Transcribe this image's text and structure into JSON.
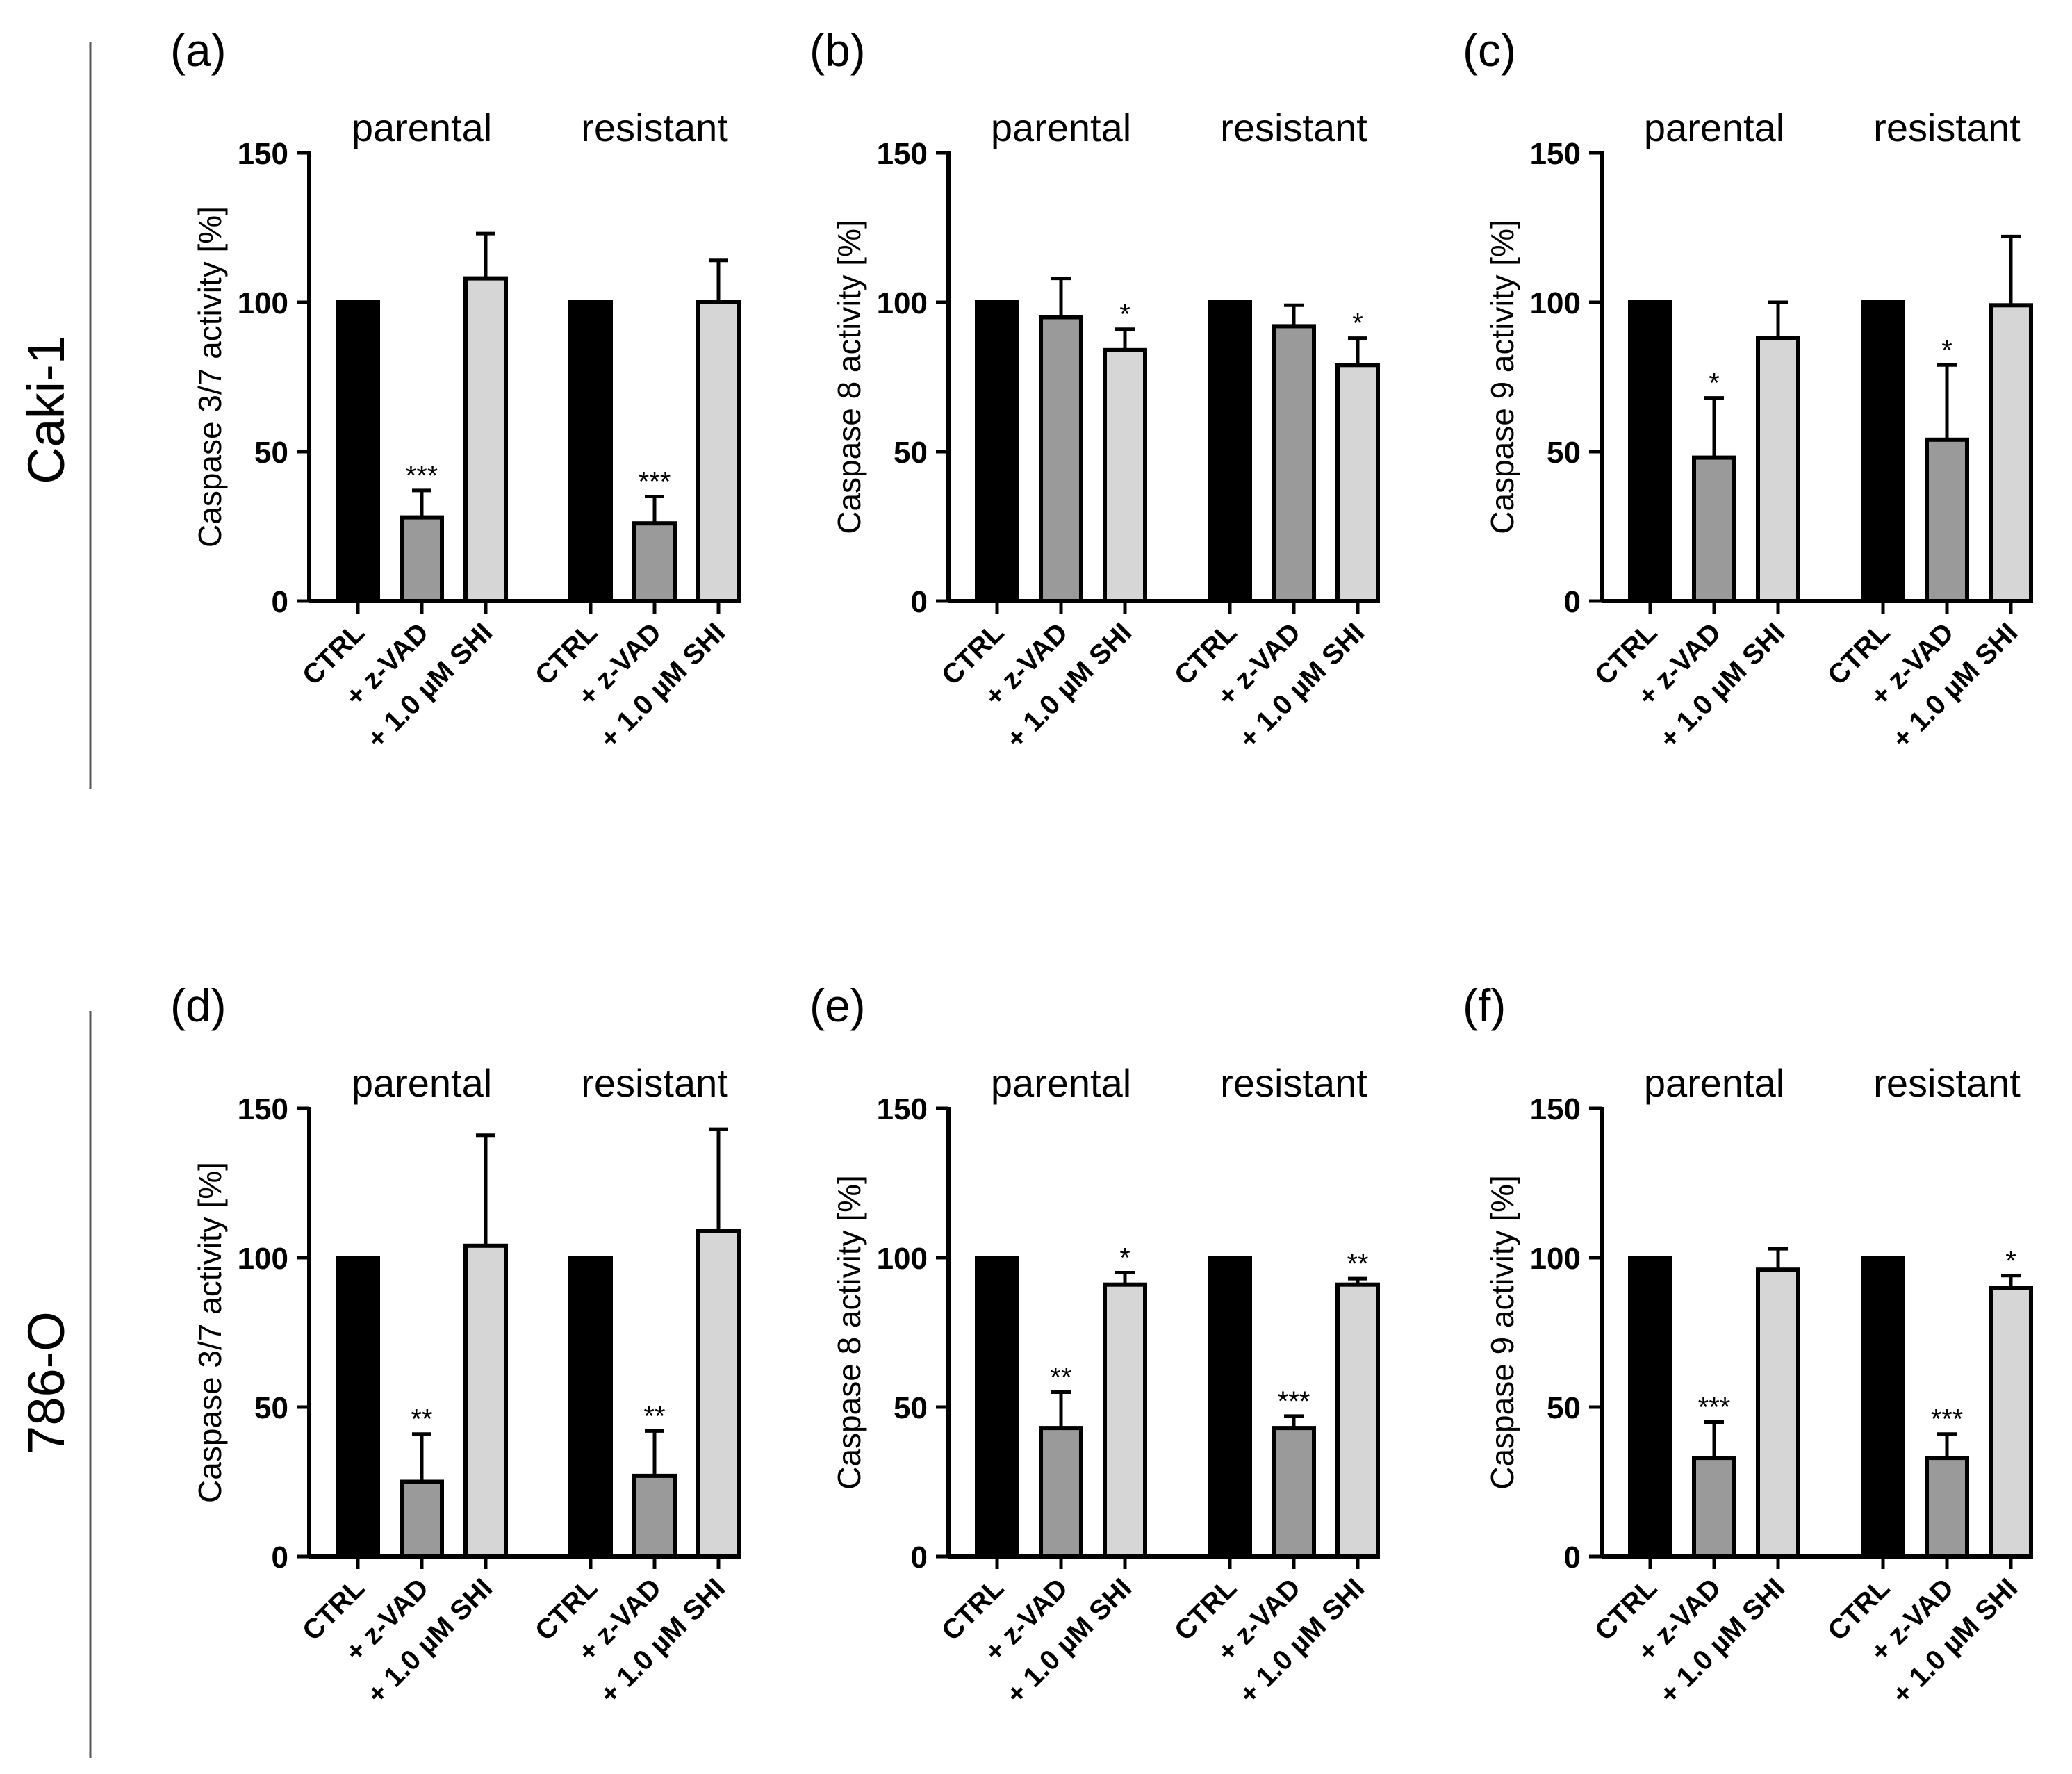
{
  "rows": [
    {
      "label": "Caki-1"
    },
    {
      "label": "786-O"
    }
  ],
  "styles": {
    "bar_fills": [
      "#000000",
      "#9a9a9a",
      "#d6d6d6"
    ],
    "stroke": "#000000"
  },
  "chart_data": [
    {
      "type": "bar",
      "panel_label": "(a)",
      "row": 0,
      "col": 0,
      "ylabel": "Caspase 3/7 activity [%]",
      "ylim": [
        0,
        150
      ],
      "yticks": [
        0,
        50,
        100,
        150
      ],
      "groups": [
        {
          "name": "parental",
          "categories": [
            "CTRL",
            "+ z-VAD",
            "+ 1.0 µM SHI"
          ],
          "values": [
            100,
            28,
            108
          ],
          "errors": [
            0,
            9,
            15
          ],
          "significance": [
            "",
            "***",
            ""
          ]
        },
        {
          "name": "resistant",
          "categories": [
            "CTRL",
            "+ z-VAD",
            "+ 1.0 µM SHI"
          ],
          "values": [
            100,
            26,
            100
          ],
          "errors": [
            0,
            9,
            14
          ],
          "significance": [
            "",
            "***",
            ""
          ]
        }
      ]
    },
    {
      "type": "bar",
      "panel_label": "(b)",
      "row": 0,
      "col": 1,
      "ylabel": "Caspase 8 activity [%]",
      "ylim": [
        0,
        150
      ],
      "yticks": [
        0,
        50,
        100,
        150
      ],
      "groups": [
        {
          "name": "parental",
          "categories": [
            "CTRL",
            "+ z-VAD",
            "+ 1.0 µM SHI"
          ],
          "values": [
            100,
            95,
            84
          ],
          "errors": [
            0,
            13,
            7
          ],
          "significance": [
            "",
            "",
            "*"
          ]
        },
        {
          "name": "resistant",
          "categories": [
            "CTRL",
            "+ z-VAD",
            "+ 1.0 µM SHI"
          ],
          "values": [
            100,
            92,
            79
          ],
          "errors": [
            0,
            7,
            9
          ],
          "significance": [
            "",
            "",
            "*"
          ]
        }
      ]
    },
    {
      "type": "bar",
      "panel_label": "(c)",
      "row": 0,
      "col": 2,
      "ylabel": "Caspase 9 activity [%]",
      "ylim": [
        0,
        150
      ],
      "yticks": [
        0,
        50,
        100,
        150
      ],
      "groups": [
        {
          "name": "parental",
          "categories": [
            "CTRL",
            "+ z-VAD",
            "+ 1.0 µM SHI"
          ],
          "values": [
            100,
            48,
            88
          ],
          "errors": [
            0,
            20,
            12
          ],
          "significance": [
            "",
            "*",
            ""
          ]
        },
        {
          "name": "resistant",
          "categories": [
            "CTRL",
            "+ z-VAD",
            "+ 1.0 µM SHI"
          ],
          "values": [
            100,
            54,
            99
          ],
          "errors": [
            0,
            25,
            23
          ],
          "significance": [
            "",
            "*",
            ""
          ]
        }
      ]
    },
    {
      "type": "bar",
      "panel_label": "(d)",
      "row": 1,
      "col": 0,
      "ylabel": "Caspase 3/7 activity [%]",
      "ylim": [
        0,
        150
      ],
      "yticks": [
        0,
        50,
        100,
        150
      ],
      "groups": [
        {
          "name": "parental",
          "categories": [
            "CTRL",
            "+ z-VAD",
            "+ 1.0 µM SHI"
          ],
          "values": [
            100,
            25,
            104
          ],
          "errors": [
            0,
            16,
            37
          ],
          "significance": [
            "",
            "**",
            ""
          ]
        },
        {
          "name": "resistant",
          "categories": [
            "CTRL",
            "+ z-VAD",
            "+ 1.0 µM SHI"
          ],
          "values": [
            100,
            27,
            109
          ],
          "errors": [
            0,
            15,
            34
          ],
          "significance": [
            "",
            "**",
            ""
          ]
        }
      ]
    },
    {
      "type": "bar",
      "panel_label": "(e)",
      "row": 1,
      "col": 1,
      "ylabel": "Caspase 8 activity [%]",
      "ylim": [
        0,
        150
      ],
      "yticks": [
        0,
        50,
        100,
        150
      ],
      "groups": [
        {
          "name": "parental",
          "categories": [
            "CTRL",
            "+ z-VAD",
            "+ 1.0 µM SHI"
          ],
          "values": [
            100,
            43,
            91
          ],
          "errors": [
            0,
            12,
            4
          ],
          "significance": [
            "",
            "**",
            "*"
          ]
        },
        {
          "name": "resistant",
          "categories": [
            "CTRL",
            "+ z-VAD",
            "+ 1.0 µM SHI"
          ],
          "values": [
            100,
            43,
            91
          ],
          "errors": [
            0,
            4,
            2
          ],
          "significance": [
            "",
            "***",
            "**"
          ]
        }
      ]
    },
    {
      "type": "bar",
      "panel_label": "(f)",
      "row": 1,
      "col": 2,
      "ylabel": "Caspase 9 activity [%]",
      "ylim": [
        0,
        150
      ],
      "yticks": [
        0,
        50,
        100,
        150
      ],
      "groups": [
        {
          "name": "parental",
          "categories": [
            "CTRL",
            "+ z-VAD",
            "+ 1.0 µM SHI"
          ],
          "values": [
            100,
            33,
            96
          ],
          "errors": [
            0,
            12,
            7
          ],
          "significance": [
            "",
            "***",
            ""
          ]
        },
        {
          "name": "resistant",
          "categories": [
            "CTRL",
            "+ z-VAD",
            "+ 1.0 µM SHI"
          ],
          "values": [
            100,
            33,
            90
          ],
          "errors": [
            0,
            8,
            4
          ],
          "significance": [
            "",
            "***",
            "*"
          ]
        }
      ]
    }
  ]
}
